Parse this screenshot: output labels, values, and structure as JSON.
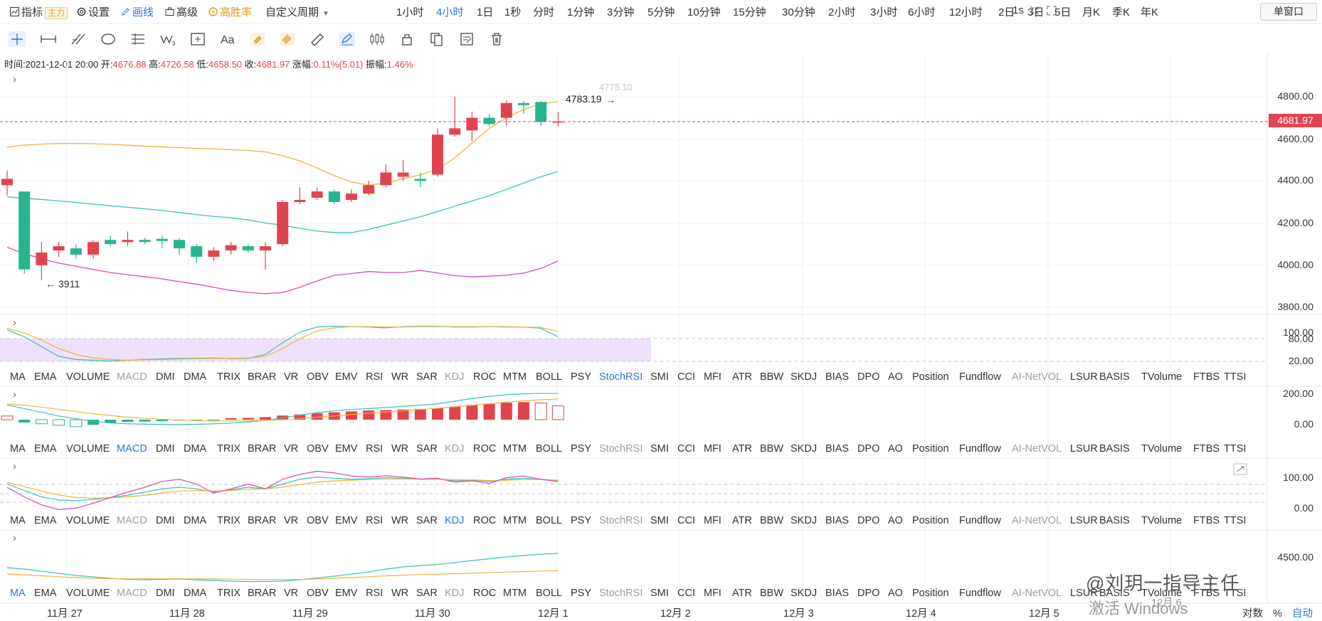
{
  "toolbar": {
    "indicator": "指标",
    "main_tag": "主力",
    "settings": "设置",
    "draw": "画线",
    "advanced": "高级",
    "high_win": "高胜率",
    "custom_period": "自定义周期",
    "periods": [
      "1小时",
      "4小时",
      "1日",
      "1秒",
      "分时",
      "1分钟",
      "3分钟",
      "5分钟",
      "10分钟",
      "15分钟",
      "30分钟",
      "2小时",
      "3小时",
      "6小时",
      "12小时",
      "2日",
      "3日",
      "5日",
      "月K",
      "季K",
      "年K"
    ],
    "active_period": "4小时",
    "interval_small": "1s",
    "window_mode": "单窗口"
  },
  "info": {
    "time_label": "时间:",
    "time": "2021-12-01 20:00",
    "open_label": "开:",
    "open": "4676.88",
    "high_label": "高:",
    "high": "4726.58",
    "low_label": "低:",
    "low": "4658.50",
    "close_label": "收:",
    "close": "4681.97",
    "change_label": "涨幅:",
    "change": "0.11%(5.01)",
    "amp_label": "振幅:",
    "amp": "1.46%"
  },
  "main_axis": [
    "4800.00",
    "4600.00",
    "4400.00",
    "4200.00",
    "4000.00",
    "3800.00"
  ],
  "current_price": "4681.97",
  "annotations": {
    "low": "3911",
    "high": "4783.19",
    "ghost": "4775.10"
  },
  "sub_axes": {
    "stochrsi": [
      "100.00",
      "80.00",
      "20.00"
    ],
    "macd": [
      "200.00",
      "0.00"
    ],
    "kdj": [
      "100.00",
      "0.00"
    ],
    "ma": [
      "4500.00"
    ]
  },
  "indicator_tabs": [
    "MA",
    "EMA",
    "VOLUME",
    "MACD",
    "DMI",
    "DMA",
    "TRIX",
    "BRAR",
    "VR",
    "OBV",
    "EMV",
    "RSI",
    "WR",
    "SAR",
    "KDJ",
    "ROC",
    "MTM",
    "BOLL",
    "PSY",
    "StochRSI",
    "SMI",
    "CCI",
    "MFI",
    "ATR",
    "BBW",
    "SKDJ",
    "BIAS",
    "DPO",
    "AO",
    "Position",
    "Fundflow",
    "AI-NetVOL",
    "LSUR",
    "BASIS",
    "TVolume",
    "FTBS",
    "TTSI"
  ],
  "rows_selected": [
    "StochRSI",
    "MACD",
    "KDJ",
    "MA"
  ],
  "dates": [
    "11月 27",
    "11月 28",
    "11月 29",
    "11月 30",
    "12月 1",
    "12月 2",
    "12月 3",
    "12月 4",
    "12月 5"
  ],
  "date_partial": "12月 6",
  "bottom_right": {
    "log": "对数",
    "pct": "%",
    "auto": "自动"
  },
  "watermark": "@刘玥一指导主任",
  "win_activate": "激活 Windows",
  "colors": {
    "up": "#e0454f",
    "down": "#26b48f",
    "accent": "#2e75d6",
    "boll_mid": "#3cc1b9",
    "boll_upper": "#f0b23a",
    "boll_lower": "#d24fb7"
  }
}
